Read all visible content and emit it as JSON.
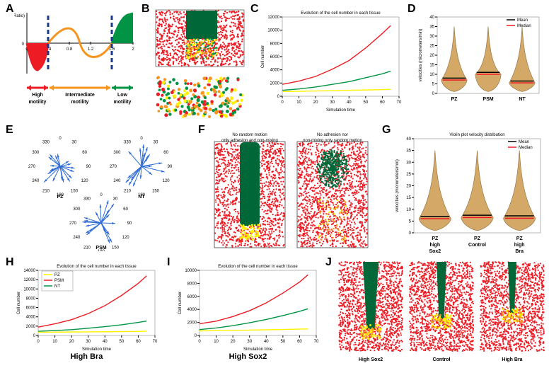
{
  "labels": {
    "A": "A",
    "B": "B",
    "C": "C",
    "D": "D",
    "E": "E",
    "F": "F",
    "G": "G",
    "H": "H",
    "I": "I",
    "J": "J"
  },
  "colors": {
    "red": "#ed1c24",
    "orange": "#f7941d",
    "green": "#009444",
    "darkgreen": "#006838",
    "yellow": "#fff200",
    "navy": "#1b3a8a",
    "blue": "#2e6bd6",
    "tan": "#d4a968",
    "black": "#000000",
    "gridgray": "#cccccc",
    "lightorange": "#f7a84a"
  },
  "panelA": {
    "ylabel": "f(Ratio)",
    "xlabel": "Ratio",
    "xticks": [
      0,
      0.4,
      0.8,
      1.2,
      1.6,
      2
    ],
    "high": "High motility",
    "inter": "Intermediate motility",
    "low": "Low motility",
    "dashed_x": [
      0.4,
      1.6
    ],
    "curve_red": {
      "x0": 0,
      "x1": 0.4
    },
    "curve_orange": {
      "x0": 0.4,
      "x1": 1.6
    },
    "curve_green": {
      "x0": 1.6,
      "x1": 2.0
    }
  },
  "panelB": {
    "bg": "#ed1c24",
    "block": "#006838",
    "mix": [
      "#f7941d",
      "#fff200",
      "#009444",
      "#ed1c24"
    ]
  },
  "panelC": {
    "title": "Evolution of the cell number in each tissue",
    "xlabel": "Simulation time",
    "ylabel": "Cell number",
    "xlim": [
      0,
      70
    ],
    "xticks": [
      0,
      10,
      20,
      30,
      40,
      50,
      60,
      70
    ],
    "ylim": [
      0,
      12000
    ],
    "yticks": [
      0,
      2000,
      4000,
      6000,
      8000,
      10000,
      12000
    ],
    "series": [
      {
        "color": "#ed1c24",
        "pts": [
          [
            0,
            1800
          ],
          [
            10,
            2300
          ],
          [
            20,
            3000
          ],
          [
            30,
            4100
          ],
          [
            40,
            5400
          ],
          [
            50,
            7300
          ],
          [
            60,
            9500
          ],
          [
            65,
            10700
          ]
        ]
      },
      {
        "color": "#009444",
        "pts": [
          [
            0,
            900
          ],
          [
            10,
            1100
          ],
          [
            20,
            1400
          ],
          [
            30,
            1800
          ],
          [
            40,
            2200
          ],
          [
            50,
            2800
          ],
          [
            60,
            3400
          ],
          [
            65,
            3800
          ]
        ]
      },
      {
        "color": "#fff200",
        "pts": [
          [
            0,
            700
          ],
          [
            10,
            750
          ],
          [
            20,
            800
          ],
          [
            30,
            850
          ],
          [
            40,
            900
          ],
          [
            50,
            950
          ],
          [
            60,
            1000
          ],
          [
            65,
            1050
          ]
        ]
      }
    ]
  },
  "panelD": {
    "ylabel": "velocities (micrometers/min)",
    "ylim": [
      0,
      40
    ],
    "yticks": [
      0,
      5,
      10,
      15,
      20,
      25,
      30,
      35,
      40
    ],
    "legend": [
      "Mean",
      "Median"
    ],
    "legend_colors": [
      "#000000",
      "#ed1c24"
    ],
    "cats": [
      "PZ",
      "PSM",
      "NT"
    ],
    "means": [
      8,
      11,
      6.5
    ],
    "medians": [
      7,
      10,
      5.5
    ],
    "violin_color": "#d4a968"
  },
  "panelE": {
    "labels": [
      "PZ",
      "NT",
      "PSM"
    ],
    "angles_deg": [
      0,
      30,
      45,
      60,
      90,
      120,
      135,
      150,
      180,
      210,
      225,
      240,
      270,
      300,
      315,
      330
    ],
    "tick_labels": [
      "0",
      "30",
      "60",
      "90",
      "120",
      "150",
      "180",
      "210",
      "240",
      "270",
      "300",
      "330"
    ]
  },
  "panelF": {
    "left_label": "No random motion only adhesion and non-mixing",
    "right_label": "No adhesion nor non-mixing only random motion"
  },
  "panelG": {
    "title": "Violin plot velocity distribution",
    "ylabel": "velocities (micrometers/min)",
    "ylim": [
      0,
      40
    ],
    "yticks": [
      0,
      5,
      10,
      15,
      20,
      25,
      30,
      35,
      40
    ],
    "legend": [
      "Mean",
      "Median"
    ],
    "legend_colors": [
      "#000000",
      "#ed1c24"
    ],
    "cats": [
      "PZ high Sox2",
      "PZ Control",
      "PZ high Bra"
    ],
    "means": [
      7,
      7.5,
      7.2
    ],
    "medians": [
      6,
      6.5,
      6.2
    ],
    "violin_color": "#d4a968"
  },
  "panelH": {
    "title": "Evolution of the cell number in each tissue",
    "caption": "High Bra",
    "xlabel": "Simulation time",
    "ylabel": "Cell number",
    "xlim": [
      0,
      70
    ],
    "xticks": [
      0,
      10,
      20,
      30,
      40,
      50,
      60,
      70
    ],
    "ylim": [
      0,
      14000
    ],
    "yticks": [
      0,
      2000,
      4000,
      6000,
      8000,
      10000,
      12000,
      14000
    ],
    "legend": [
      "PZ",
      "PSM",
      "NT"
    ],
    "legend_colors": [
      "#fff200",
      "#ed1c24",
      "#009444"
    ],
    "series": [
      {
        "color": "#ed1c24",
        "pts": [
          [
            0,
            1800
          ],
          [
            10,
            2500
          ],
          [
            20,
            3400
          ],
          [
            30,
            4700
          ],
          [
            40,
            6400
          ],
          [
            50,
            8600
          ],
          [
            60,
            11200
          ],
          [
            65,
            12800
          ]
        ]
      },
      {
        "color": "#009444",
        "pts": [
          [
            0,
            900
          ],
          [
            10,
            1050
          ],
          [
            20,
            1250
          ],
          [
            30,
            1550
          ],
          [
            40,
            1900
          ],
          [
            50,
            2300
          ],
          [
            60,
            2800
          ],
          [
            65,
            3100
          ]
        ]
      },
      {
        "color": "#fff200",
        "pts": [
          [
            0,
            700
          ],
          [
            10,
            720
          ],
          [
            20,
            740
          ],
          [
            30,
            770
          ],
          [
            40,
            800
          ],
          [
            50,
            830
          ],
          [
            60,
            870
          ],
          [
            65,
            900
          ]
        ]
      }
    ]
  },
  "panelI": {
    "title": "Evolution of the cell number in each tissue",
    "caption": "High Sox2",
    "xlabel": "Simulation time",
    "ylabel": "Cell number",
    "xlim": [
      0,
      70
    ],
    "xticks": [
      0,
      10,
      20,
      30,
      40,
      50,
      60,
      70
    ],
    "ylim": [
      0,
      10000
    ],
    "yticks": [
      0,
      2000,
      4000,
      6000,
      8000,
      10000
    ],
    "series": [
      {
        "color": "#ed1c24",
        "pts": [
          [
            0,
            1800
          ],
          [
            10,
            2200
          ],
          [
            20,
            2900
          ],
          [
            30,
            3800
          ],
          [
            40,
            5000
          ],
          [
            50,
            6500
          ],
          [
            60,
            8200
          ],
          [
            65,
            9300
          ]
        ]
      },
      {
        "color": "#009444",
        "pts": [
          [
            0,
            900
          ],
          [
            10,
            1150
          ],
          [
            20,
            1500
          ],
          [
            30,
            1950
          ],
          [
            40,
            2450
          ],
          [
            50,
            3050
          ],
          [
            60,
            3700
          ],
          [
            65,
            4100
          ]
        ]
      },
      {
        "color": "#fff200",
        "pts": [
          [
            0,
            700
          ],
          [
            10,
            740
          ],
          [
            20,
            780
          ],
          [
            30,
            820
          ],
          [
            40,
            870
          ],
          [
            50,
            920
          ],
          [
            60,
            970
          ],
          [
            65,
            1000
          ]
        ]
      }
    ]
  },
  "panelJ": {
    "captions": [
      "High Sox2",
      "Control",
      "High Bra"
    ]
  }
}
